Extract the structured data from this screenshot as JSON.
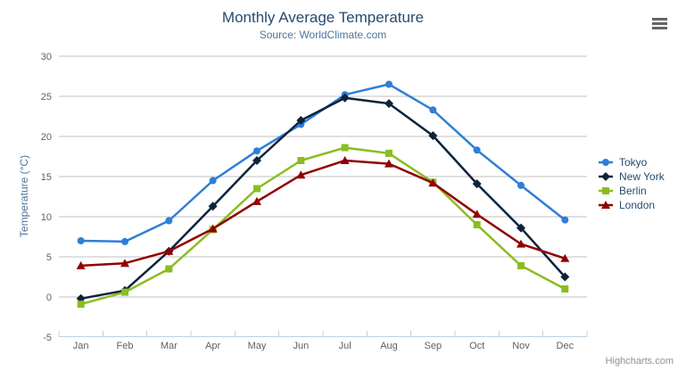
{
  "chart_data": {
    "type": "line",
    "title": "Monthly Average Temperature",
    "subtitle": "Source: WorldClimate.com",
    "xlabel": "",
    "ylabel": "Temperature (°C)",
    "categories": [
      "Jan",
      "Feb",
      "Mar",
      "Apr",
      "May",
      "Jun",
      "Jul",
      "Aug",
      "Sep",
      "Oct",
      "Nov",
      "Dec"
    ],
    "series": [
      {
        "name": "Tokyo",
        "color": "#2f7ed8",
        "marker": "circle",
        "values": [
          7.0,
          6.9,
          9.5,
          14.5,
          18.2,
          21.5,
          25.2,
          26.5,
          23.3,
          18.3,
          13.9,
          9.6
        ]
      },
      {
        "name": "New York",
        "color": "#0d233a",
        "marker": "diamond",
        "values": [
          -0.2,
          0.8,
          5.7,
          11.3,
          17.0,
          22.0,
          24.8,
          24.1,
          20.1,
          14.1,
          8.6,
          2.5
        ]
      },
      {
        "name": "Berlin",
        "color": "#8bbc21",
        "marker": "square",
        "values": [
          -0.9,
          0.6,
          3.5,
          8.4,
          13.5,
          17.0,
          18.6,
          17.9,
          14.3,
          9.0,
          3.9,
          1.0
        ]
      },
      {
        "name": "London",
        "color": "#910000",
        "marker": "triangle",
        "values": [
          3.9,
          4.2,
          5.7,
          8.5,
          11.9,
          15.2,
          17.0,
          16.6,
          14.2,
          10.3,
          6.6,
          4.8
        ]
      }
    ],
    "ylim": [
      -5,
      30
    ],
    "y_ticks": [
      -5,
      0,
      5,
      10,
      15,
      20,
      25,
      30
    ],
    "grid": true,
    "legend_position": "right",
    "credits": "Highcharts.com"
  },
  "export_menu": {
    "icon": "hamburger",
    "bar_count": 3
  },
  "theme": {
    "background": "#ffffff",
    "title_color": "#274b6d",
    "subtitle_color": "#4d759e",
    "axis_label_color": "#606060",
    "axis_title_color": "#4d759e",
    "grid_line_color": "#c0c0c0",
    "axis_line_color": "#c0d0e0",
    "legend_text_color": "#274b6d",
    "credits_color": "#909090",
    "menu_icon_color": "#666666"
  }
}
